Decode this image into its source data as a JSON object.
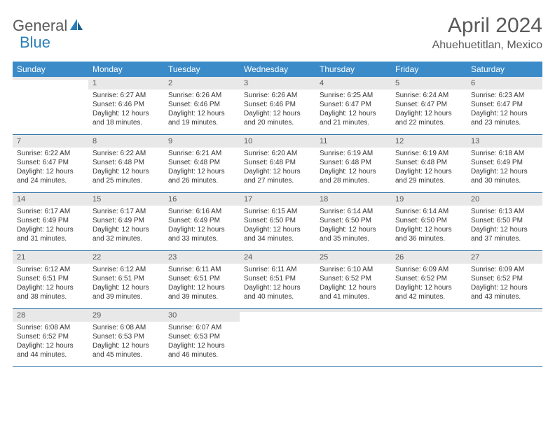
{
  "logo": {
    "general": "General",
    "blue": "Blue"
  },
  "title": "April 2024",
  "location": "Ahuehuetitlan, Mexico",
  "weekdays": [
    "Sunday",
    "Monday",
    "Tuesday",
    "Wednesday",
    "Thursday",
    "Friday",
    "Saturday"
  ],
  "colors": {
    "header_bar": "#3b8bc9",
    "header_text": "#ffffff",
    "daynum_bg": "#e8e8e8",
    "row_border": "#2a6fa5",
    "logo_blue": "#2a7fba",
    "text_gray": "#5a5a5a"
  },
  "weeks": [
    [
      {
        "n": "",
        "sr": "",
        "ss": "",
        "d1": "",
        "d2": ""
      },
      {
        "n": "1",
        "sr": "Sunrise: 6:27 AM",
        "ss": "Sunset: 6:46 PM",
        "d1": "Daylight: 12 hours",
        "d2": "and 18 minutes."
      },
      {
        "n": "2",
        "sr": "Sunrise: 6:26 AM",
        "ss": "Sunset: 6:46 PM",
        "d1": "Daylight: 12 hours",
        "d2": "and 19 minutes."
      },
      {
        "n": "3",
        "sr": "Sunrise: 6:26 AM",
        "ss": "Sunset: 6:46 PM",
        "d1": "Daylight: 12 hours",
        "d2": "and 20 minutes."
      },
      {
        "n": "4",
        "sr": "Sunrise: 6:25 AM",
        "ss": "Sunset: 6:47 PM",
        "d1": "Daylight: 12 hours",
        "d2": "and 21 minutes."
      },
      {
        "n": "5",
        "sr": "Sunrise: 6:24 AM",
        "ss": "Sunset: 6:47 PM",
        "d1": "Daylight: 12 hours",
        "d2": "and 22 minutes."
      },
      {
        "n": "6",
        "sr": "Sunrise: 6:23 AM",
        "ss": "Sunset: 6:47 PM",
        "d1": "Daylight: 12 hours",
        "d2": "and 23 minutes."
      }
    ],
    [
      {
        "n": "7",
        "sr": "Sunrise: 6:22 AM",
        "ss": "Sunset: 6:47 PM",
        "d1": "Daylight: 12 hours",
        "d2": "and 24 minutes."
      },
      {
        "n": "8",
        "sr": "Sunrise: 6:22 AM",
        "ss": "Sunset: 6:48 PM",
        "d1": "Daylight: 12 hours",
        "d2": "and 25 minutes."
      },
      {
        "n": "9",
        "sr": "Sunrise: 6:21 AM",
        "ss": "Sunset: 6:48 PM",
        "d1": "Daylight: 12 hours",
        "d2": "and 26 minutes."
      },
      {
        "n": "10",
        "sr": "Sunrise: 6:20 AM",
        "ss": "Sunset: 6:48 PM",
        "d1": "Daylight: 12 hours",
        "d2": "and 27 minutes."
      },
      {
        "n": "11",
        "sr": "Sunrise: 6:19 AM",
        "ss": "Sunset: 6:48 PM",
        "d1": "Daylight: 12 hours",
        "d2": "and 28 minutes."
      },
      {
        "n": "12",
        "sr": "Sunrise: 6:19 AM",
        "ss": "Sunset: 6:48 PM",
        "d1": "Daylight: 12 hours",
        "d2": "and 29 minutes."
      },
      {
        "n": "13",
        "sr": "Sunrise: 6:18 AM",
        "ss": "Sunset: 6:49 PM",
        "d1": "Daylight: 12 hours",
        "d2": "and 30 minutes."
      }
    ],
    [
      {
        "n": "14",
        "sr": "Sunrise: 6:17 AM",
        "ss": "Sunset: 6:49 PM",
        "d1": "Daylight: 12 hours",
        "d2": "and 31 minutes."
      },
      {
        "n": "15",
        "sr": "Sunrise: 6:17 AM",
        "ss": "Sunset: 6:49 PM",
        "d1": "Daylight: 12 hours",
        "d2": "and 32 minutes."
      },
      {
        "n": "16",
        "sr": "Sunrise: 6:16 AM",
        "ss": "Sunset: 6:49 PM",
        "d1": "Daylight: 12 hours",
        "d2": "and 33 minutes."
      },
      {
        "n": "17",
        "sr": "Sunrise: 6:15 AM",
        "ss": "Sunset: 6:50 PM",
        "d1": "Daylight: 12 hours",
        "d2": "and 34 minutes."
      },
      {
        "n": "18",
        "sr": "Sunrise: 6:14 AM",
        "ss": "Sunset: 6:50 PM",
        "d1": "Daylight: 12 hours",
        "d2": "and 35 minutes."
      },
      {
        "n": "19",
        "sr": "Sunrise: 6:14 AM",
        "ss": "Sunset: 6:50 PM",
        "d1": "Daylight: 12 hours",
        "d2": "and 36 minutes."
      },
      {
        "n": "20",
        "sr": "Sunrise: 6:13 AM",
        "ss": "Sunset: 6:50 PM",
        "d1": "Daylight: 12 hours",
        "d2": "and 37 minutes."
      }
    ],
    [
      {
        "n": "21",
        "sr": "Sunrise: 6:12 AM",
        "ss": "Sunset: 6:51 PM",
        "d1": "Daylight: 12 hours",
        "d2": "and 38 minutes."
      },
      {
        "n": "22",
        "sr": "Sunrise: 6:12 AM",
        "ss": "Sunset: 6:51 PM",
        "d1": "Daylight: 12 hours",
        "d2": "and 39 minutes."
      },
      {
        "n": "23",
        "sr": "Sunrise: 6:11 AM",
        "ss": "Sunset: 6:51 PM",
        "d1": "Daylight: 12 hours",
        "d2": "and 39 minutes."
      },
      {
        "n": "24",
        "sr": "Sunrise: 6:11 AM",
        "ss": "Sunset: 6:51 PM",
        "d1": "Daylight: 12 hours",
        "d2": "and 40 minutes."
      },
      {
        "n": "25",
        "sr": "Sunrise: 6:10 AM",
        "ss": "Sunset: 6:52 PM",
        "d1": "Daylight: 12 hours",
        "d2": "and 41 minutes."
      },
      {
        "n": "26",
        "sr": "Sunrise: 6:09 AM",
        "ss": "Sunset: 6:52 PM",
        "d1": "Daylight: 12 hours",
        "d2": "and 42 minutes."
      },
      {
        "n": "27",
        "sr": "Sunrise: 6:09 AM",
        "ss": "Sunset: 6:52 PM",
        "d1": "Daylight: 12 hours",
        "d2": "and 43 minutes."
      }
    ],
    [
      {
        "n": "28",
        "sr": "Sunrise: 6:08 AM",
        "ss": "Sunset: 6:52 PM",
        "d1": "Daylight: 12 hours",
        "d2": "and 44 minutes."
      },
      {
        "n": "29",
        "sr": "Sunrise: 6:08 AM",
        "ss": "Sunset: 6:53 PM",
        "d1": "Daylight: 12 hours",
        "d2": "and 45 minutes."
      },
      {
        "n": "30",
        "sr": "Sunrise: 6:07 AM",
        "ss": "Sunset: 6:53 PM",
        "d1": "Daylight: 12 hours",
        "d2": "and 46 minutes."
      },
      {
        "n": "",
        "sr": "",
        "ss": "",
        "d1": "",
        "d2": ""
      },
      {
        "n": "",
        "sr": "",
        "ss": "",
        "d1": "",
        "d2": ""
      },
      {
        "n": "",
        "sr": "",
        "ss": "",
        "d1": "",
        "d2": ""
      },
      {
        "n": "",
        "sr": "",
        "ss": "",
        "d1": "",
        "d2": ""
      }
    ]
  ]
}
